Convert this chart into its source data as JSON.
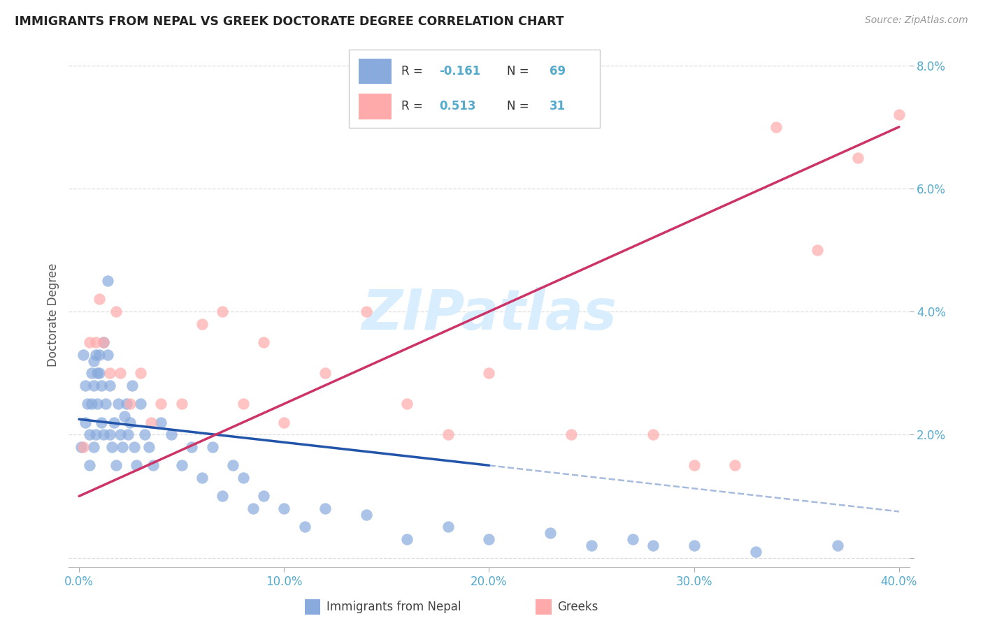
{
  "title": "IMMIGRANTS FROM NEPAL VS GREEK DOCTORATE DEGREE CORRELATION CHART",
  "source": "Source: ZipAtlas.com",
  "ylabel": "Doctorate Degree",
  "legend_label1": "Immigrants from Nepal",
  "legend_label2": "Greeks",
  "color_blue": "#88AADD",
  "color_pink": "#FFAAAA",
  "color_blue_line": "#2255AA",
  "color_pink_line": "#CC3366",
  "color_axis_text": "#55AACC",
  "watermark_text": "ZIPatlas",
  "watermark_color": "#D8EEFF",
  "blue_x": [
    0.1,
    0.2,
    0.3,
    0.3,
    0.4,
    0.5,
    0.5,
    0.6,
    0.6,
    0.7,
    0.7,
    0.7,
    0.8,
    0.8,
    0.9,
    0.9,
    1.0,
    1.0,
    1.1,
    1.1,
    1.2,
    1.2,
    1.3,
    1.4,
    1.4,
    1.5,
    1.5,
    1.6,
    1.7,
    1.8,
    1.9,
    2.0,
    2.1,
    2.2,
    2.3,
    2.4,
    2.5,
    2.6,
    2.7,
    2.8,
    3.0,
    3.2,
    3.4,
    3.6,
    4.0,
    4.5,
    5.0,
    5.5,
    6.0,
    6.5,
    7.0,
    7.5,
    8.0,
    8.5,
    9.0,
    10.0,
    11.0,
    12.0,
    14.0,
    16.0,
    18.0,
    20.0,
    23.0,
    25.0,
    27.0,
    28.0,
    30.0,
    33.0,
    37.0
  ],
  "blue_y": [
    1.8,
    3.3,
    2.8,
    2.2,
    2.5,
    2.0,
    1.5,
    3.0,
    2.5,
    1.8,
    3.2,
    2.8,
    2.0,
    3.3,
    3.0,
    2.5,
    3.3,
    3.0,
    2.2,
    2.8,
    2.0,
    3.5,
    2.5,
    4.5,
    3.3,
    2.0,
    2.8,
    1.8,
    2.2,
    1.5,
    2.5,
    2.0,
    1.8,
    2.3,
    2.5,
    2.0,
    2.2,
    2.8,
    1.8,
    1.5,
    2.5,
    2.0,
    1.8,
    1.5,
    2.2,
    2.0,
    1.5,
    1.8,
    1.3,
    1.8,
    1.0,
    1.5,
    1.3,
    0.8,
    1.0,
    0.8,
    0.5,
    0.8,
    0.7,
    0.3,
    0.5,
    0.3,
    0.4,
    0.2,
    0.3,
    0.2,
    0.2,
    0.1,
    0.2
  ],
  "pink_x": [
    0.2,
    0.5,
    0.8,
    1.0,
    1.2,
    1.5,
    1.8,
    2.0,
    2.5,
    3.0,
    3.5,
    4.0,
    5.0,
    6.0,
    7.0,
    8.0,
    9.0,
    10.0,
    12.0,
    14.0,
    16.0,
    18.0,
    20.0,
    24.0,
    28.0,
    30.0,
    32.0,
    34.0,
    36.0,
    38.0,
    40.0
  ],
  "pink_y": [
    1.8,
    3.5,
    3.5,
    4.2,
    3.5,
    3.0,
    4.0,
    3.0,
    2.5,
    3.0,
    2.2,
    2.5,
    2.5,
    3.8,
    4.0,
    2.5,
    3.5,
    2.2,
    3.0,
    4.0,
    2.5,
    2.0,
    3.0,
    2.0,
    2.0,
    1.5,
    1.5,
    7.0,
    5.0,
    6.5,
    7.2
  ],
  "blue_line_x0": 0.0,
  "blue_line_y0": 2.25,
  "blue_line_x1": 20.0,
  "blue_line_y1": 1.5,
  "blue_dash_x0": 20.0,
  "blue_dash_y0": 1.5,
  "blue_dash_x1": 40.0,
  "blue_dash_y1": 0.75,
  "pink_line_x0": 0.0,
  "pink_line_y0": 1.0,
  "pink_line_x1": 40.0,
  "pink_line_y1": 7.0,
  "xlim_min": 0.0,
  "xlim_max": 40.0,
  "ylim_min": 0.0,
  "ylim_max": 8.0
}
